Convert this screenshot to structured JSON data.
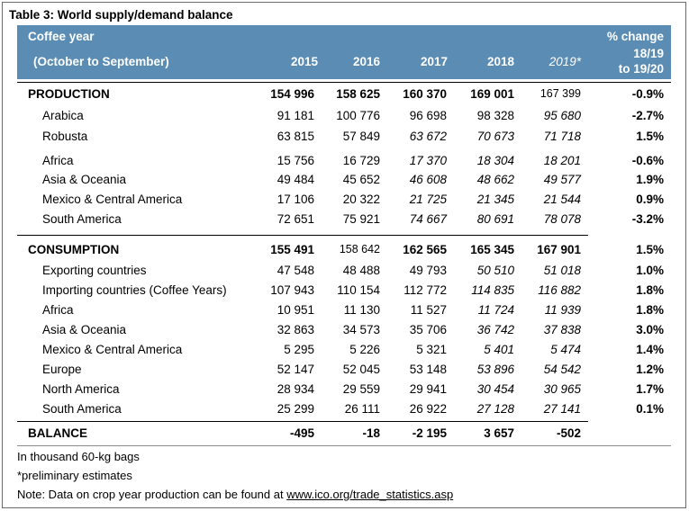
{
  "title": "Table 3: World supply/demand balance",
  "header": {
    "coffee_year": "Coffee year",
    "period": "(October to September)",
    "years": [
      "2015",
      "2016",
      "2017",
      "2018",
      "2019*"
    ],
    "pct_line1": "% change",
    "pct_line2": "18/19",
    "pct_line3": "to 19/20"
  },
  "rows": [
    {
      "label": "PRODUCTION",
      "values": [
        "154 996",
        "158 625",
        "160 370",
        "169 001",
        "167 399"
      ],
      "pct": "-0.9%"
    },
    {
      "label": "Arabica",
      "values": [
        "91 181",
        "100 776",
        "96 698",
        "98 328",
        "95 680"
      ],
      "pct": "-2.7%"
    },
    {
      "label": "Robusta",
      "values": [
        "63 815",
        "57 849",
        "63 672",
        "70 673",
        "71 718"
      ],
      "pct": "1.5%"
    },
    {
      "label": "Africa",
      "values": [
        "15 756",
        "16 729",
        "17 370",
        "18 304",
        "18 201"
      ],
      "pct": "-0.6%"
    },
    {
      "label": "Asia & Oceania",
      "values": [
        "49 484",
        "45 652",
        "46 608",
        "48 662",
        "49 577"
      ],
      "pct": "1.9%"
    },
    {
      "label": "Mexico & Central America",
      "values": [
        "17 106",
        "20 322",
        "21 725",
        "21 345",
        "21 544"
      ],
      "pct": "0.9%"
    },
    {
      "label": "South America",
      "values": [
        "72 651",
        "75 921",
        "74 667",
        "80 691",
        "78 078"
      ],
      "pct": "-3.2%"
    },
    {
      "label": "CONSUMPTION",
      "values": [
        "155 491",
        "158 642",
        "162 565",
        "165 345",
        "167 901"
      ],
      "pct": "1.5%"
    },
    {
      "label": "Exporting countries",
      "values": [
        "47 548",
        "48 488",
        "49 793",
        "50 510",
        "51 018"
      ],
      "pct": "1.0%"
    },
    {
      "label": "Importing countries (Coffee Years)",
      "values": [
        "107 943",
        "110 154",
        "112 772",
        "114 835",
        "116 882"
      ],
      "pct": "1.8%"
    },
    {
      "label": "Africa",
      "values": [
        "10 951",
        "11 130",
        "11 527",
        "11 724",
        "11 939"
      ],
      "pct": "1.8%"
    },
    {
      "label": "Asia & Oceania",
      "values": [
        "32 863",
        "34 573",
        "35 706",
        "36 742",
        "37 838"
      ],
      "pct": "3.0%"
    },
    {
      "label": "Mexico & Central America",
      "values": [
        "5 295",
        "5 226",
        "5 321",
        "5 401",
        "5 474"
      ],
      "pct": "1.4%"
    },
    {
      "label": "Europe",
      "values": [
        "52 147",
        "52 045",
        "53 148",
        "53 896",
        "54 542"
      ],
      "pct": "1.2%"
    },
    {
      "label": "North America",
      "values": [
        "28 934",
        "29 559",
        "29 941",
        "30 454",
        "30 965"
      ],
      "pct": "1.7%"
    },
    {
      "label": "South America",
      "values": [
        "25 299",
        "26 111",
        "26 922",
        "27 128",
        "27 141"
      ],
      "pct": "0.1%"
    },
    {
      "label": "BALANCE",
      "values": [
        "-495",
        "-18",
        "-2 195",
        "3 657",
        "-502"
      ],
      "pct": ""
    }
  ],
  "notes": {
    "units": "In thousand 60-kg bags",
    "preliminary": "*preliminary estimates",
    "note_prefix": "Note: Data on crop year production can be found at ",
    "note_link": "www.ico.org/trade_statistics.asp"
  }
}
